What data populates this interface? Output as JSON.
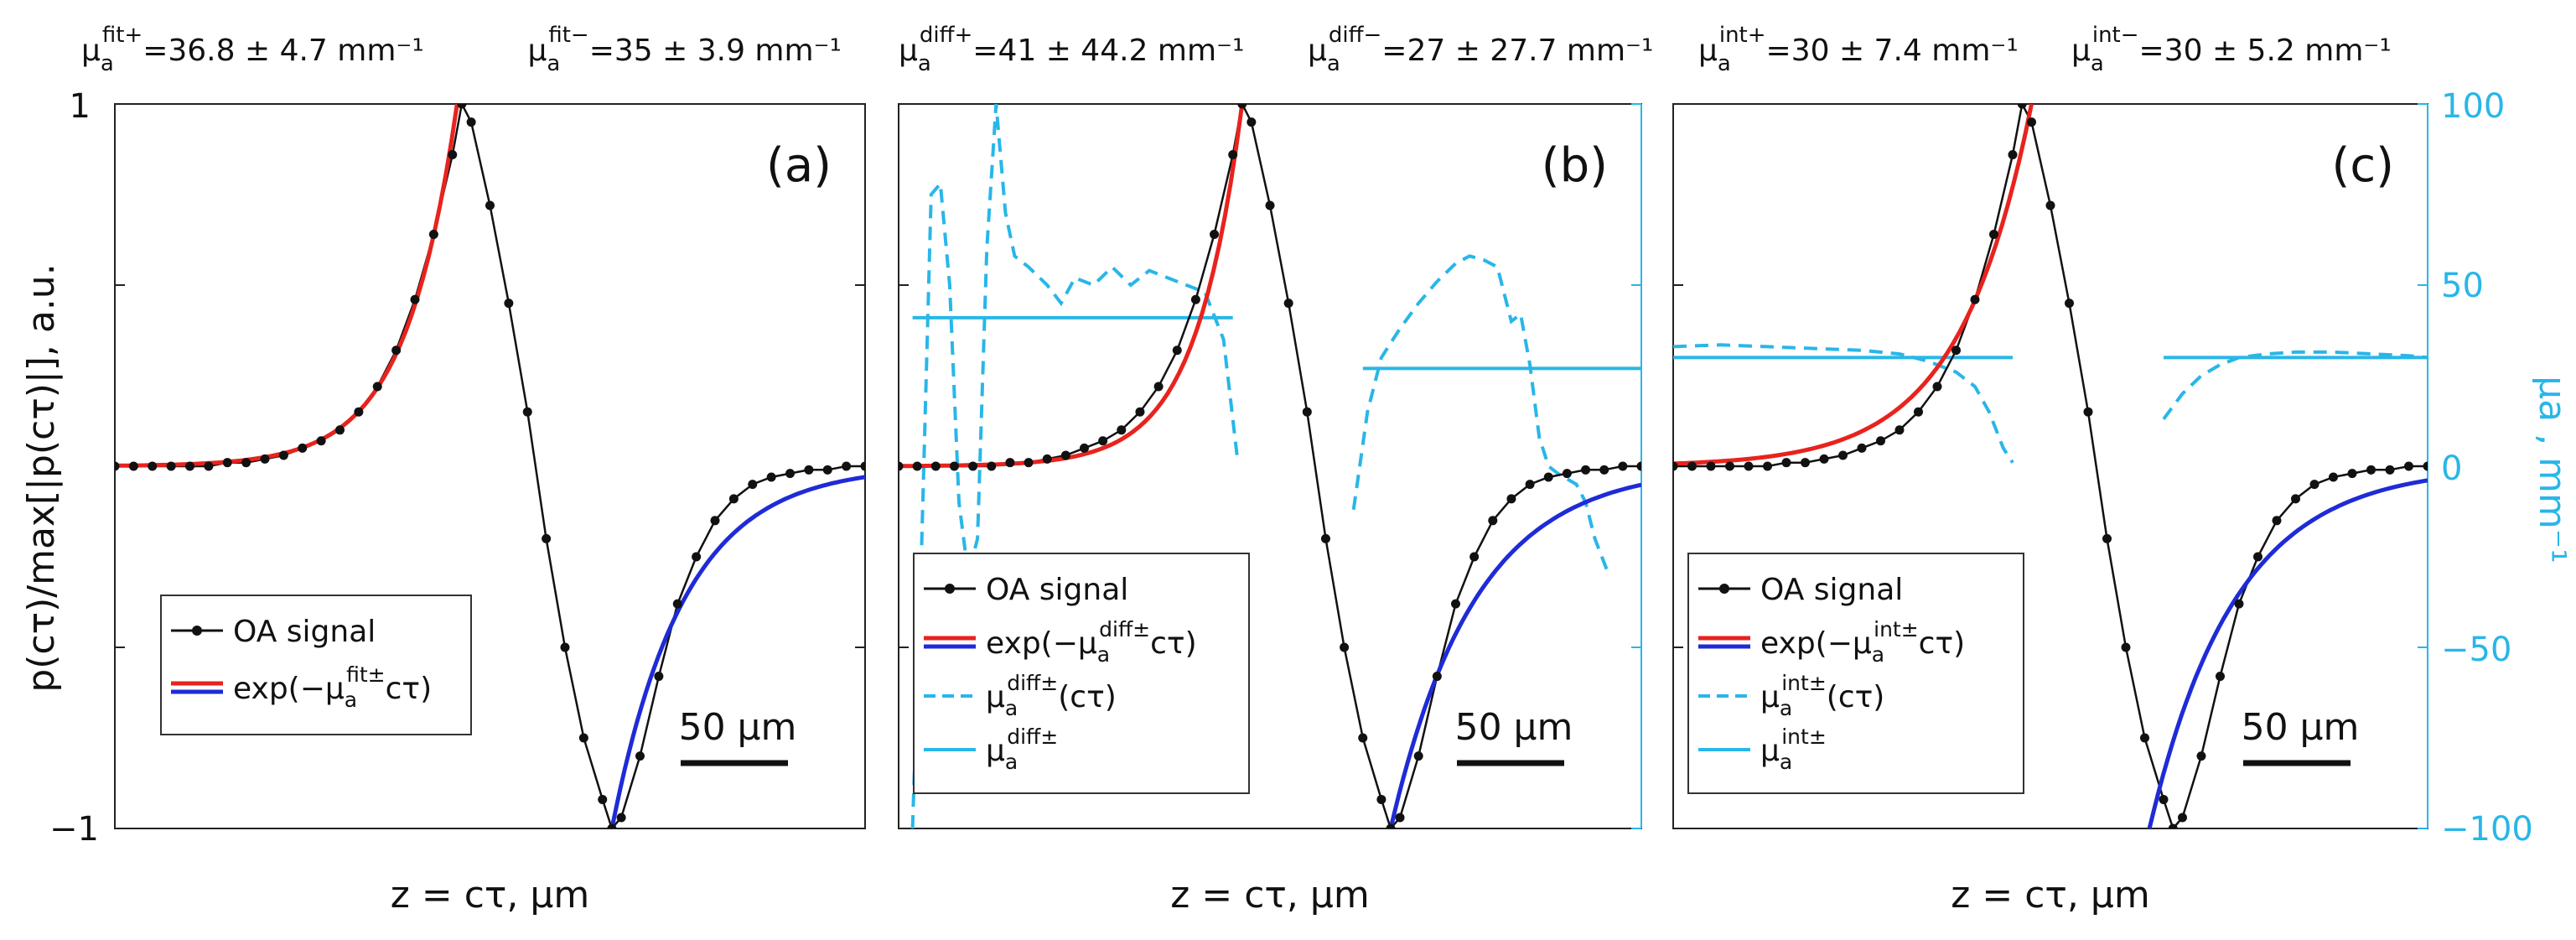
{
  "chart_data": [
    {
      "type": "line",
      "panel_label": "(a)",
      "xlabel": "z = cτ, µm",
      "ylabel": "p(cτ)/max[|p(cτ)|], a.u.",
      "ylim": [
        -1,
        1
      ],
      "yticks": [
        "1",
        "−1"
      ],
      "annotations": [
        {
          "mu_sup": "fit+",
          "value": "=36.8 ± 4.7 mm⁻¹"
        },
        {
          "mu_sup": "fit−",
          "value": "=35 ± 3.9 mm⁻¹"
        }
      ],
      "legend": [
        {
          "type": "signal",
          "label": "OA signal"
        },
        {
          "type": "exp",
          "prefix": "exp(−µ",
          "sup": "fit±",
          "suffix": "cτ)"
        }
      ],
      "scalebar": "50 µm",
      "series": {
        "signal": [
          [
            0,
            0
          ],
          [
            2,
            0
          ],
          [
            4,
            0
          ],
          [
            6,
            0
          ],
          [
            8,
            0
          ],
          [
            10,
            0
          ],
          [
            12,
            0.01
          ],
          [
            14,
            0.01
          ],
          [
            16,
            0.02
          ],
          [
            18,
            0.03
          ],
          [
            20,
            0.05
          ],
          [
            22,
            0.07
          ],
          [
            24,
            0.1
          ],
          [
            26,
            0.15
          ],
          [
            28,
            0.22
          ],
          [
            30,
            0.32
          ],
          [
            32,
            0.46
          ],
          [
            34,
            0.64
          ],
          [
            36,
            0.86
          ],
          [
            37,
            1.0
          ],
          [
            38,
            0.95
          ],
          [
            40,
            0.72
          ],
          [
            42,
            0.45
          ],
          [
            44,
            0.15
          ],
          [
            46,
            -0.2
          ],
          [
            48,
            -0.5
          ],
          [
            50,
            -0.75
          ],
          [
            52,
            -0.92
          ],
          [
            53,
            -1.0
          ],
          [
            54,
            -0.97
          ],
          [
            56,
            -0.8
          ],
          [
            58,
            -0.58
          ],
          [
            60,
            -0.38
          ],
          [
            62,
            -0.25
          ],
          [
            64,
            -0.15
          ],
          [
            66,
            -0.09
          ],
          [
            68,
            -0.05
          ],
          [
            70,
            -0.03
          ],
          [
            72,
            -0.02
          ],
          [
            74,
            -0.01
          ],
          [
            76,
            -0.01
          ],
          [
            78,
            0
          ],
          [
            80,
            0
          ]
        ],
        "fit_pos": {
          "x": [
            0,
            36.5
          ],
          "peak_x": 36.5,
          "peak_y": 1.0,
          "mu": 0.18
        },
        "fit_neg": {
          "x": [
            53,
            80
          ],
          "peak_x": 53,
          "peak_y": -1.0,
          "mu": 0.13
        }
      }
    },
    {
      "type": "line",
      "panel_label": "(b)",
      "xlabel": "z = cτ, µm",
      "ylim": [
        -1,
        1
      ],
      "annotations": [
        {
          "mu_sup": "diff+",
          "value": "=41 ± 44.2 mm⁻¹"
        },
        {
          "mu_sup": "diff−",
          "value": "=27 ± 27.7 mm⁻¹"
        }
      ],
      "legend": [
        {
          "type": "signal",
          "label": "OA signal"
        },
        {
          "type": "exp",
          "prefix": "exp(−µ",
          "sup": "diff±",
          "suffix": "cτ)"
        },
        {
          "type": "dashed",
          "prefix": "µ",
          "sup": "diff±",
          "suffix": "(cτ)"
        },
        {
          "type": "solid-cyan",
          "prefix": "µ",
          "sup": "diff±",
          "suffix": ""
        }
      ],
      "scalebar": "50 µm",
      "series": {
        "signal": [
          [
            0,
            0
          ],
          [
            2,
            0
          ],
          [
            4,
            0
          ],
          [
            6,
            0
          ],
          [
            8,
            0
          ],
          [
            10,
            0
          ],
          [
            12,
            0.01
          ],
          [
            14,
            0.01
          ],
          [
            16,
            0.02
          ],
          [
            18,
            0.03
          ],
          [
            20,
            0.05
          ],
          [
            22,
            0.07
          ],
          [
            24,
            0.1
          ],
          [
            26,
            0.15
          ],
          [
            28,
            0.22
          ],
          [
            30,
            0.32
          ],
          [
            32,
            0.46
          ],
          [
            34,
            0.64
          ],
          [
            36,
            0.86
          ],
          [
            37,
            1.0
          ],
          [
            38,
            0.95
          ],
          [
            40,
            0.72
          ],
          [
            42,
            0.45
          ],
          [
            44,
            0.15
          ],
          [
            46,
            -0.2
          ],
          [
            48,
            -0.5
          ],
          [
            50,
            -0.75
          ],
          [
            52,
            -0.92
          ],
          [
            53,
            -1.0
          ],
          [
            54,
            -0.97
          ],
          [
            56,
            -0.8
          ],
          [
            58,
            -0.58
          ],
          [
            60,
            -0.38
          ],
          [
            62,
            -0.25
          ],
          [
            64,
            -0.15
          ],
          [
            66,
            -0.09
          ],
          [
            68,
            -0.05
          ],
          [
            70,
            -0.03
          ],
          [
            72,
            -0.02
          ],
          [
            74,
            -0.01
          ],
          [
            76,
            -0.01
          ],
          [
            78,
            0
          ],
          [
            80,
            0
          ]
        ],
        "fit_pos": {
          "x": [
            0,
            37
          ],
          "peak_x": 37,
          "peak_y": 1.0,
          "mu": 0.2
        },
        "fit_neg": {
          "x": [
            53,
            80
          ],
          "peak_x": 53,
          "peak_y": -1.0,
          "mu": 0.11
        },
        "mu_dashed_left": [
          [
            1.5,
            -100
          ],
          [
            2.5,
            -20
          ],
          [
            3.5,
            75
          ],
          [
            4.5,
            78
          ],
          [
            5.5,
            50
          ],
          [
            6.5,
            -10
          ],
          [
            7.5,
            -30
          ],
          [
            8.5,
            -20
          ],
          [
            9.5,
            60
          ],
          [
            10.5,
            100
          ],
          [
            11.5,
            70
          ],
          [
            12.5,
            58
          ],
          [
            14,
            55
          ],
          [
            16,
            50
          ],
          [
            17.5,
            45
          ],
          [
            19,
            52
          ],
          [
            21,
            50
          ],
          [
            23,
            55
          ],
          [
            25,
            50
          ],
          [
            27,
            54
          ],
          [
            29,
            52
          ],
          [
            31,
            50
          ],
          [
            33,
            48
          ],
          [
            35,
            35
          ],
          [
            36.5,
            2
          ]
        ],
        "mu_solid_left": [
          [
            1.5,
            41
          ],
          [
            36,
            41
          ]
        ],
        "mu_dashed_right": [
          [
            49,
            -12
          ],
          [
            50.5,
            15
          ],
          [
            52,
            30
          ],
          [
            54,
            38
          ],
          [
            56,
            45
          ],
          [
            58,
            51
          ],
          [
            60,
            56
          ],
          [
            61.5,
            58
          ],
          [
            63,
            57
          ],
          [
            64.5,
            55
          ],
          [
            66,
            40
          ],
          [
            67,
            42
          ],
          [
            68,
            28
          ],
          [
            69,
            8
          ],
          [
            70,
            0
          ],
          [
            71,
            -2
          ],
          [
            73,
            -5
          ],
          [
            74,
            -10
          ],
          [
            75,
            -20
          ],
          [
            76.5,
            -30
          ]
        ],
        "mu_solid_right": [
          [
            50,
            27
          ],
          [
            80,
            27
          ]
        ]
      }
    },
    {
      "type": "line",
      "panel_label": "(c)",
      "xlabel": "z = cτ, µm",
      "ylim": [
        -1,
        1
      ],
      "y2label": "µa , mm⁻¹",
      "y2lim": [
        -100,
        100
      ],
      "y2ticks": [
        "100",
        "50",
        "0",
        "−50",
        "−100"
      ],
      "annotations": [
        {
          "mu_sup": "int+",
          "value": "=30 ± 7.4 mm⁻¹"
        },
        {
          "mu_sup": "int−",
          "value": "=30 ± 5.2 mm⁻¹"
        }
      ],
      "legend": [
        {
          "type": "signal",
          "label": "OA signal"
        },
        {
          "type": "exp",
          "prefix": "exp(−µ",
          "sup": "int±",
          "suffix": "cτ)"
        },
        {
          "type": "dashed",
          "prefix": "µ",
          "sup": "int±",
          "suffix": "(cτ)"
        },
        {
          "type": "solid-cyan",
          "prefix": "µ",
          "sup": "int±",
          "suffix": ""
        }
      ],
      "scalebar": "50 µm",
      "series": {
        "signal": [
          [
            0,
            0
          ],
          [
            2,
            0
          ],
          [
            4,
            0
          ],
          [
            6,
            0
          ],
          [
            8,
            0
          ],
          [
            10,
            0
          ],
          [
            12,
            0.01
          ],
          [
            14,
            0.01
          ],
          [
            16,
            0.02
          ],
          [
            18,
            0.03
          ],
          [
            20,
            0.05
          ],
          [
            22,
            0.07
          ],
          [
            24,
            0.1
          ],
          [
            26,
            0.15
          ],
          [
            28,
            0.22
          ],
          [
            30,
            0.32
          ],
          [
            32,
            0.46
          ],
          [
            34,
            0.64
          ],
          [
            36,
            0.86
          ],
          [
            37,
            1.0
          ],
          [
            38,
            0.95
          ],
          [
            40,
            0.72
          ],
          [
            42,
            0.45
          ],
          [
            44,
            0.15
          ],
          [
            46,
            -0.2
          ],
          [
            48,
            -0.5
          ],
          [
            50,
            -0.75
          ],
          [
            52,
            -0.92
          ],
          [
            53,
            -1.0
          ],
          [
            54,
            -0.97
          ],
          [
            56,
            -0.8
          ],
          [
            58,
            -0.58
          ],
          [
            60,
            -0.38
          ],
          [
            62,
            -0.25
          ],
          [
            64,
            -0.15
          ],
          [
            66,
            -0.09
          ],
          [
            68,
            -0.05
          ],
          [
            70,
            -0.03
          ],
          [
            72,
            -0.02
          ],
          [
            74,
            -0.01
          ],
          [
            76,
            -0.01
          ],
          [
            78,
            0
          ],
          [
            80,
            0
          ]
        ],
        "fit_pos": {
          "x": [
            0,
            38
          ],
          "peak_x": 38,
          "peak_y": 1.0,
          "mu": 0.13
        },
        "fit_neg": {
          "x": [
            50.5,
            80
          ],
          "peak_x": 50.5,
          "peak_y": -1.0,
          "mu": 0.11
        },
        "mu_dashed_left": [
          [
            0,
            33
          ],
          [
            5,
            33.5
          ],
          [
            10,
            33
          ],
          [
            15,
            32.5
          ],
          [
            20,
            32
          ],
          [
            24,
            31
          ],
          [
            27,
            29
          ],
          [
            30,
            26
          ],
          [
            32,
            22
          ],
          [
            33.5,
            15
          ],
          [
            35,
            5
          ],
          [
            36,
            1
          ]
        ],
        "mu_solid_left": [
          [
            0,
            30
          ],
          [
            36,
            30
          ]
        ],
        "mu_dashed_right": [
          [
            52,
            13
          ],
          [
            54,
            20
          ],
          [
            56,
            25
          ],
          [
            58,
            28
          ],
          [
            60,
            30
          ],
          [
            63,
            31
          ],
          [
            66,
            31.5
          ],
          [
            70,
            31.5
          ],
          [
            74,
            31
          ],
          [
            78,
            30.5
          ],
          [
            80,
            30
          ]
        ],
        "mu_solid_right": [
          [
            52,
            30
          ],
          [
            80,
            30
          ]
        ]
      }
    }
  ]
}
